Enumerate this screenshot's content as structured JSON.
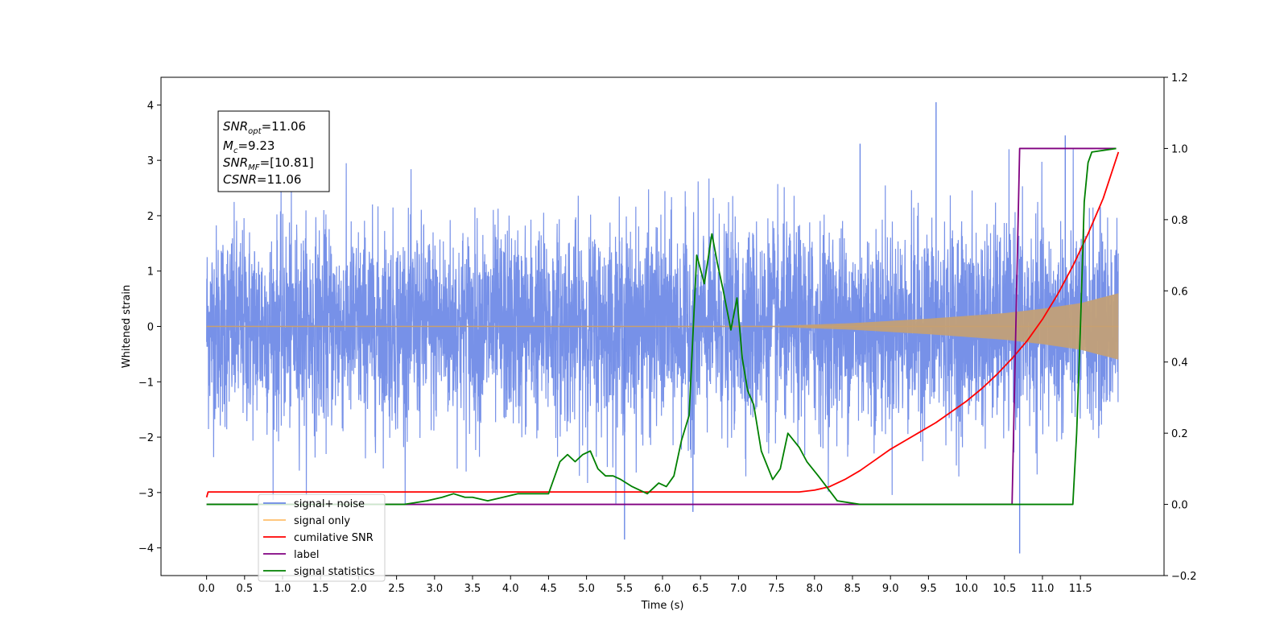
{
  "chart_data": {
    "type": "line",
    "xlabel": "Time (s)",
    "ylabel": "Whitened strain",
    "xlim": [
      -0.6,
      12.6
    ],
    "ylim": [
      -4.5,
      4.5
    ],
    "y2lim": [
      -0.2,
      1.2
    ],
    "x_ticks": [
      0.0,
      0.5,
      1.0,
      1.5,
      2.0,
      2.5,
      3.0,
      3.5,
      4.0,
      4.5,
      5.0,
      5.5,
      6.0,
      6.5,
      7.0,
      7.5,
      8.0,
      8.5,
      9.0,
      9.5,
      10.0,
      10.5,
      11.0,
      11.5
    ],
    "x_tick_labels": [
      "0.0",
      "0.5",
      "1.0",
      "1.5",
      "2.0",
      "2.5",
      "3.0",
      "3.5",
      "4.0",
      "4.5",
      "5.0",
      "5.5",
      "6.0",
      "6.5",
      "7.0",
      "7.5",
      "8.0",
      "8.5",
      "9.0",
      "9.5",
      "10.0",
      "10.5",
      "11.0",
      "11.5"
    ],
    "y_ticks": [
      -4,
      -3,
      -2,
      -1,
      0,
      1,
      2,
      3,
      4
    ],
    "y_tick_labels": [
      "−4",
      "−3",
      "−2",
      "−1",
      "0",
      "1",
      "2",
      "3",
      "4"
    ],
    "y2_ticks": [
      -0.2,
      0.0,
      0.2,
      0.4,
      0.6,
      0.8,
      1.0,
      1.2
    ],
    "y2_tick_labels": [
      "−0.2",
      "0.0",
      "0.2",
      "0.4",
      "0.6",
      "0.8",
      "1.0",
      "1.2"
    ],
    "legend_position": "lower-left",
    "legend": [
      {
        "label": "signal+ noise",
        "color": "#6b88e6"
      },
      {
        "label": "signal only",
        "color": "#ffbf6b"
      },
      {
        "label": "cumilative SNR",
        "color": "#ff0000"
      },
      {
        "label": "label",
        "color": "#800080"
      },
      {
        "label": "signal statistics",
        "color": "#008000"
      }
    ],
    "annotation": {
      "lines": [
        {
          "sym": "SNR",
          "sub": "opt",
          "value": "=11.06"
        },
        {
          "sym": "M",
          "sub": "c",
          "value": "=9.23"
        },
        {
          "sym": "SNR",
          "sub": "MF",
          "value": "=[10.81]"
        },
        {
          "sym": "CSNR",
          "sub": "",
          "value": "=11.06"
        }
      ]
    },
    "series": [
      {
        "name": "signal+ noise",
        "axis": "left",
        "color": "#6b88e6",
        "description": "dense noisy strain, roughly Gaussian with sigma ~0.9, span 0 to 12 s",
        "x_range": [
          0,
          12
        ],
        "noise_sigma": 0.9,
        "noted_extremes": [
          {
            "x": 9.6,
            "y": 4.05
          },
          {
            "x": 10.7,
            "y": -4.1
          },
          {
            "x": 5.5,
            "y": -3.85
          },
          {
            "x": 8.6,
            "y": 3.3
          },
          {
            "x": 11.3,
            "y": 3.45
          },
          {
            "x": 6.4,
            "y": -3.35
          }
        ]
      },
      {
        "name": "signal only",
        "axis": "left",
        "color": "#ffbf6b",
        "description": "chirp signal growing in amplitude toward 12 s",
        "amplitude_envelope": {
          "x": [
            0,
            7.5,
            8.5,
            9.5,
            10.5,
            11.0,
            11.5,
            12.0
          ],
          "y": [
            0.0,
            0.01,
            0.06,
            0.14,
            0.24,
            0.32,
            0.42,
            0.6
          ]
        }
      },
      {
        "name": "cumilative SNR",
        "axis": "right",
        "color": "#ff0000",
        "x": [
          0.0,
          0.02,
          7.8,
          8.0,
          8.2,
          8.4,
          8.6,
          8.8,
          9.0,
          9.2,
          9.4,
          9.6,
          9.8,
          10.0,
          10.2,
          10.4,
          10.6,
          10.8,
          11.0,
          11.2,
          11.4,
          11.6,
          11.8,
          12.0
        ],
        "y": [
          0.02,
          0.035,
          0.035,
          0.04,
          0.05,
          0.07,
          0.095,
          0.125,
          0.155,
          0.18,
          0.205,
          0.23,
          0.26,
          0.29,
          0.325,
          0.365,
          0.41,
          0.46,
          0.52,
          0.59,
          0.67,
          0.76,
          0.86,
          0.99
        ]
      },
      {
        "name": "label",
        "axis": "right",
        "color": "#800080",
        "x": [
          0.0,
          10.6,
          10.7,
          11.97
        ],
        "y": [
          0.0,
          0.0,
          1.0,
          1.0
        ]
      },
      {
        "name": "signal statistics",
        "axis": "right",
        "color": "#008000",
        "x": [
          0.0,
          2.6,
          2.9,
          3.1,
          3.25,
          3.4,
          3.5,
          3.7,
          3.9,
          4.1,
          4.3,
          4.5,
          4.65,
          4.75,
          4.85,
          4.95,
          5.05,
          5.15,
          5.25,
          5.35,
          5.45,
          5.6,
          5.8,
          5.95,
          6.05,
          6.15,
          6.25,
          6.35,
          6.45,
          6.55,
          6.65,
          6.72,
          6.8,
          6.9,
          6.98,
          7.05,
          7.12,
          7.2,
          7.3,
          7.45,
          7.55,
          7.65,
          7.8,
          7.9,
          8.05,
          8.3,
          8.6,
          9.0,
          10.0,
          11.4,
          11.45,
          11.5,
          11.55,
          11.6,
          11.65,
          11.97
        ],
        "y": [
          0.0,
          0.0,
          0.01,
          0.02,
          0.03,
          0.02,
          0.02,
          0.01,
          0.02,
          0.03,
          0.03,
          0.03,
          0.12,
          0.14,
          0.12,
          0.14,
          0.15,
          0.1,
          0.08,
          0.08,
          0.07,
          0.05,
          0.03,
          0.06,
          0.05,
          0.08,
          0.18,
          0.25,
          0.7,
          0.62,
          0.76,
          0.68,
          0.6,
          0.49,
          0.58,
          0.41,
          0.32,
          0.28,
          0.15,
          0.07,
          0.1,
          0.2,
          0.16,
          0.12,
          0.08,
          0.01,
          0.0,
          0.0,
          0.0,
          0.0,
          0.2,
          0.5,
          0.85,
          0.96,
          0.99,
          1.0
        ]
      }
    ]
  }
}
